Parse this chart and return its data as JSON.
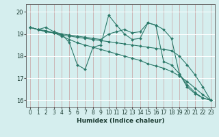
{
  "xlabel": "Humidex (Indice chaleur)",
  "xlim": [
    -0.5,
    23.5
  ],
  "ylim": [
    15.7,
    20.35
  ],
  "yticks": [
    16,
    17,
    18,
    19,
    20
  ],
  "xticks": [
    0,
    1,
    2,
    3,
    4,
    5,
    6,
    7,
    8,
    9,
    10,
    11,
    12,
    13,
    14,
    15,
    16,
    17,
    18,
    19,
    20,
    21,
    22,
    23
  ],
  "line_color": "#2a7868",
  "marker_color": "#2a7868",
  "bg_color": "#d5eeee",
  "grid_color_v": "#c8a0a0",
  "grid_color_h": "#ffffff",
  "series": [
    [
      19.3,
      19.2,
      19.3,
      19.1,
      19.0,
      18.6,
      17.6,
      17.4,
      18.4,
      18.5,
      19.85,
      19.4,
      19.0,
      18.75,
      18.8,
      19.5,
      19.4,
      17.75,
      17.6,
      17.2,
      16.7,
      16.35,
      16.1,
      16.0
    ],
    [
      19.3,
      19.2,
      19.1,
      19.05,
      18.9,
      18.75,
      18.6,
      18.5,
      18.4,
      18.3,
      18.2,
      18.1,
      18.0,
      17.9,
      17.8,
      17.65,
      17.55,
      17.45,
      17.3,
      17.1,
      16.85,
      16.55,
      16.25,
      16.0
    ],
    [
      19.3,
      19.2,
      19.15,
      19.05,
      18.95,
      18.9,
      18.85,
      18.8,
      18.75,
      18.7,
      18.65,
      18.6,
      18.55,
      18.5,
      18.45,
      18.4,
      18.35,
      18.3,
      18.25,
      18.0,
      17.6,
      17.15,
      16.6,
      16.0
    ],
    [
      19.3,
      19.2,
      19.1,
      19.05,
      19.0,
      18.95,
      18.9,
      18.85,
      18.8,
      18.75,
      19.0,
      19.1,
      19.2,
      19.05,
      19.1,
      19.5,
      19.4,
      19.2,
      18.8,
      17.2,
      16.6,
      16.3,
      16.1,
      16.0
    ]
  ],
  "xlabel_fontsize": 6.5,
  "tick_fontsize": 5.5,
  "ytick_fontsize": 6.0
}
